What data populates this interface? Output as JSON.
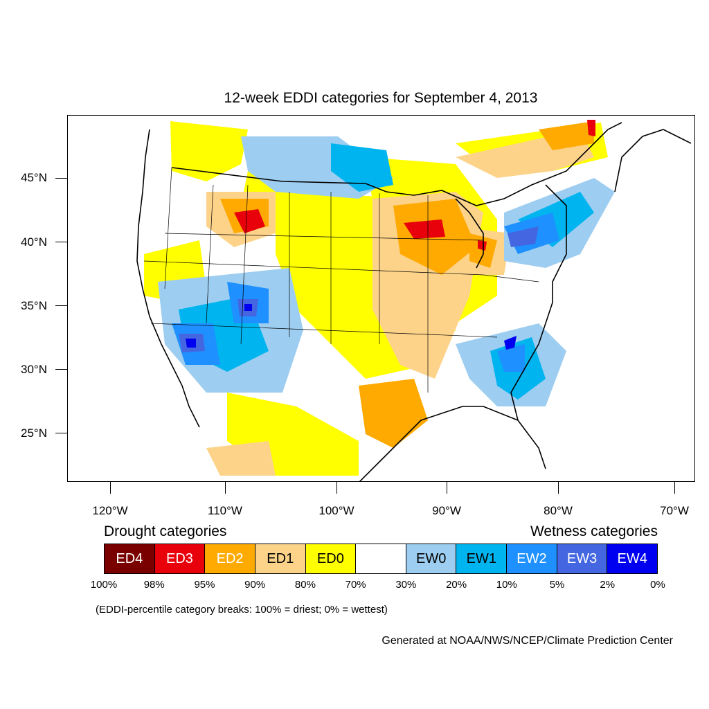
{
  "title": "12-week EDDI categories for September 4, 2013",
  "lat_labels": [
    "45°N",
    "40°N",
    "35°N",
    "30°N",
    "25°N"
  ],
  "lon_labels": [
    "120°W",
    "110°W",
    "100°W",
    "90°W",
    "80°W",
    "70°W"
  ],
  "legend": {
    "drought_heading": "Drought categories",
    "wetness_heading": "Wetness categories",
    "categories": [
      {
        "label": "ED4",
        "color": "#7a0000",
        "text_color": "#ffffff"
      },
      {
        "label": "ED3",
        "color": "#e8000b",
        "text_color": "#ffffff"
      },
      {
        "label": "ED2",
        "color": "#ffaa00",
        "text_color": "#ffffff"
      },
      {
        "label": "ED1",
        "color": "#fdd38a",
        "text_color": "#000000"
      },
      {
        "label": "ED0",
        "color": "#ffff00",
        "text_color": "#000000"
      },
      {
        "label": "",
        "color": "#ffffff",
        "text_color": "#000000"
      },
      {
        "label": "EW0",
        "color": "#9dcdf0",
        "text_color": "#000000"
      },
      {
        "label": "EW1",
        "color": "#00b4f0",
        "text_color": "#000000"
      },
      {
        "label": "EW2",
        "color": "#1e90ff",
        "text_color": "#ffffff"
      },
      {
        "label": "EW3",
        "color": "#4466e0",
        "text_color": "#ffffff"
      },
      {
        "label": "EW4",
        "color": "#0000f0",
        "text_color": "#ffffff"
      }
    ],
    "percentiles": [
      "100%",
      "98%",
      "95%",
      "90%",
      "80%",
      "70%",
      "30%",
      "20%",
      "10%",
      "5%",
      "2%",
      "0%"
    ]
  },
  "note": "(EDDI-percentile category breaks: 100% = driest; 0% = wettest)",
  "credit": "Generated at NOAA/NWS/NCEP/Climate Prediction Center"
}
